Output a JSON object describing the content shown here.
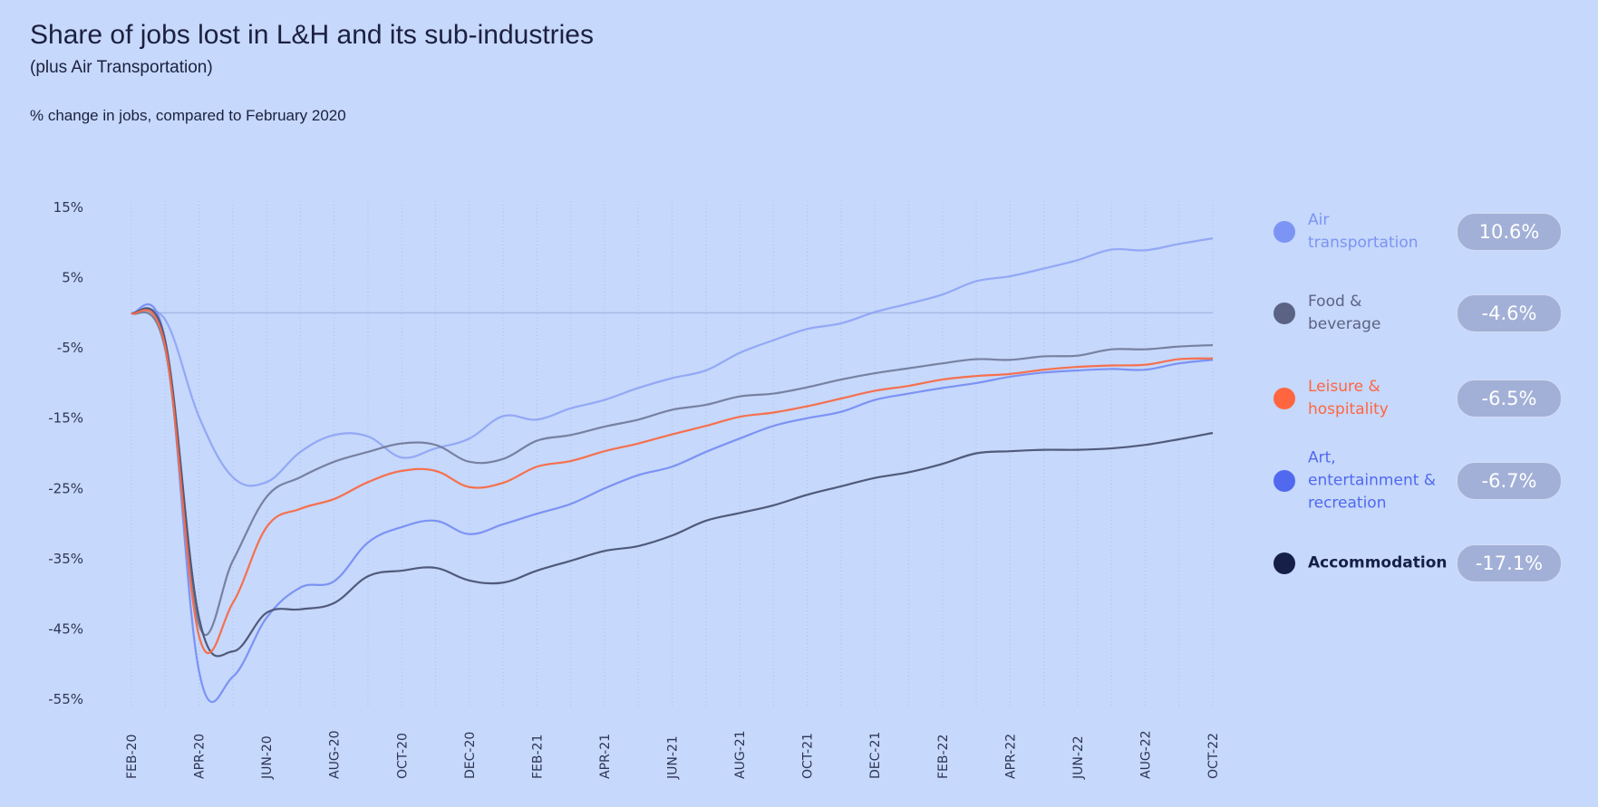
{
  "title": "Share of jobs lost in L&H and its sub-industries",
  "subtitle": "(plus Air Transportation)",
  "note": "% change in jobs, compared to February 2020",
  "chart_data": {
    "type": "line",
    "title": "Share of jobs lost in L&H and its sub-industries",
    "subtitle": "(plus Air Transportation)",
    "ylabel": "% change in jobs, compared to February 2020",
    "ylim": [
      -55,
      15
    ],
    "yticks": [
      "15%",
      "5%",
      "-5%",
      "-15%",
      "-25%",
      "-35%",
      "-45%",
      "-55%"
    ],
    "ytick_values": [
      15,
      5,
      -5,
      -15,
      -25,
      -35,
      -45,
      -55
    ],
    "x": [
      "FEB-20",
      "MAR-20",
      "APR-20",
      "MAY-20",
      "JUN-20",
      "JUL-20",
      "AUG-20",
      "SEP-20",
      "OCT-20",
      "NOV-20",
      "DEC-20",
      "JAN-21",
      "FEB-21",
      "MAR-21",
      "APR-21",
      "MAY-21",
      "JUN-21",
      "JUL-21",
      "AUG-21",
      "SEP-21",
      "OCT-21",
      "NOV-21",
      "DEC-21",
      "JAN-22",
      "FEB-22",
      "MAR-22",
      "APR-22",
      "MAY-22",
      "JUN-22",
      "JUL-22",
      "AUG-22",
      "SEP-22",
      "OCT-22"
    ],
    "xticks": [
      "FEB-20",
      "APR-20",
      "JUN-20",
      "AUG-20",
      "OCT-20",
      "DEC-20",
      "FEB-21",
      "APR-21",
      "JUN-21",
      "AUG-21",
      "OCT-21",
      "DEC-21",
      "FEB-22",
      "APR-22",
      "JUN-22",
      "AUG-22",
      "OCT-22"
    ],
    "grid": "vertical dotted monthly, zero reference line",
    "legend_placement": "right",
    "series": [
      {
        "name": "Air\ntransportation",
        "color": "#7c94f4",
        "line_color": "#8aa0f4",
        "final_label": "10.6%",
        "values": [
          0,
          -1,
          -14.8,
          -23.4,
          -24.1,
          -19.8,
          -17.4,
          -17.6,
          -20.6,
          -19.3,
          -17.9,
          -14.7,
          -15.2,
          -13.6,
          -12.4,
          -10.7,
          -9.3,
          -8.2,
          -5.7,
          -3.9,
          -2.3,
          -1.5,
          0.1,
          1.3,
          2.6,
          4.5,
          5.2,
          6.3,
          7.5,
          9.0,
          8.9,
          9.8,
          10.6
        ]
      },
      {
        "name": "Food &\nbeverage",
        "color": "#5b6385",
        "line_color": "#737c9c",
        "final_label": "-4.6%",
        "values": [
          0,
          -5.2,
          -44.4,
          -35.3,
          -26.2,
          -23.4,
          -21.2,
          -19.8,
          -18.6,
          -18.8,
          -21.2,
          -20.8,
          -18.2,
          -17.4,
          -16.2,
          -15.2,
          -13.8,
          -13.1,
          -11.9,
          -11.5,
          -10.6,
          -9.5,
          -8.6,
          -7.9,
          -7.2,
          -6.6,
          -6.7,
          -6.2,
          -6.1,
          -5.2,
          -5.2,
          -4.8,
          -4.6
        ]
      },
      {
        "name": "Leisure &\nhospitality",
        "color": "#ff6640",
        "line_color": "#f86a45",
        "final_label": "-6.5%",
        "values": [
          0,
          -4.8,
          -46,
          -41.3,
          -30.5,
          -27.9,
          -26.5,
          -24.1,
          -22.5,
          -22.5,
          -24.8,
          -24.2,
          -21.9,
          -21.1,
          -19.7,
          -18.6,
          -17.3,
          -16.1,
          -14.8,
          -14.2,
          -13.3,
          -12.2,
          -11.1,
          -10.4,
          -9.5,
          -9.0,
          -8.7,
          -8.1,
          -7.7,
          -7.5,
          -7.4,
          -6.6,
          -6.5
        ]
      },
      {
        "name": "Art,\nentertainment &\nrecreation",
        "color": "#5069ef",
        "line_color": "#6f86f2",
        "final_label": "-6.7%",
        "values": [
          0,
          -4,
          -51,
          -51.8,
          -43.4,
          -39.1,
          -38.2,
          -32.7,
          -30.5,
          -29.6,
          -31.5,
          -30.1,
          -28.6,
          -27.2,
          -25.0,
          -23.1,
          -21.9,
          -19.8,
          -17.9,
          -16.1,
          -15.0,
          -14.1,
          -12.4,
          -11.5,
          -10.7,
          -10.0,
          -9.1,
          -8.5,
          -8.2,
          -8.0,
          -8.1,
          -7.2,
          -6.7
        ]
      },
      {
        "name": "Accommodation",
        "color": "#161f48",
        "line_color": "#4a5373",
        "final_label": "-17.1%",
        "values": [
          0,
          -4,
          -43.4,
          -48.2,
          -42.7,
          -42.2,
          -41.3,
          -37.5,
          -36.7,
          -36.3,
          -38.1,
          -38.4,
          -36.7,
          -35.3,
          -33.9,
          -33.2,
          -31.7,
          -29.6,
          -28.5,
          -27.4,
          -25.9,
          -24.7,
          -23.5,
          -22.7,
          -21.5,
          -20.0,
          -19.7,
          -19.5,
          -19.5,
          -19.3,
          -18.8,
          -18.0,
          -17.1
        ]
      }
    ]
  },
  "colors": {
    "background": "#c6d8fb",
    "pill": "#a2b0d7",
    "axis_text": "#2e3555"
  }
}
